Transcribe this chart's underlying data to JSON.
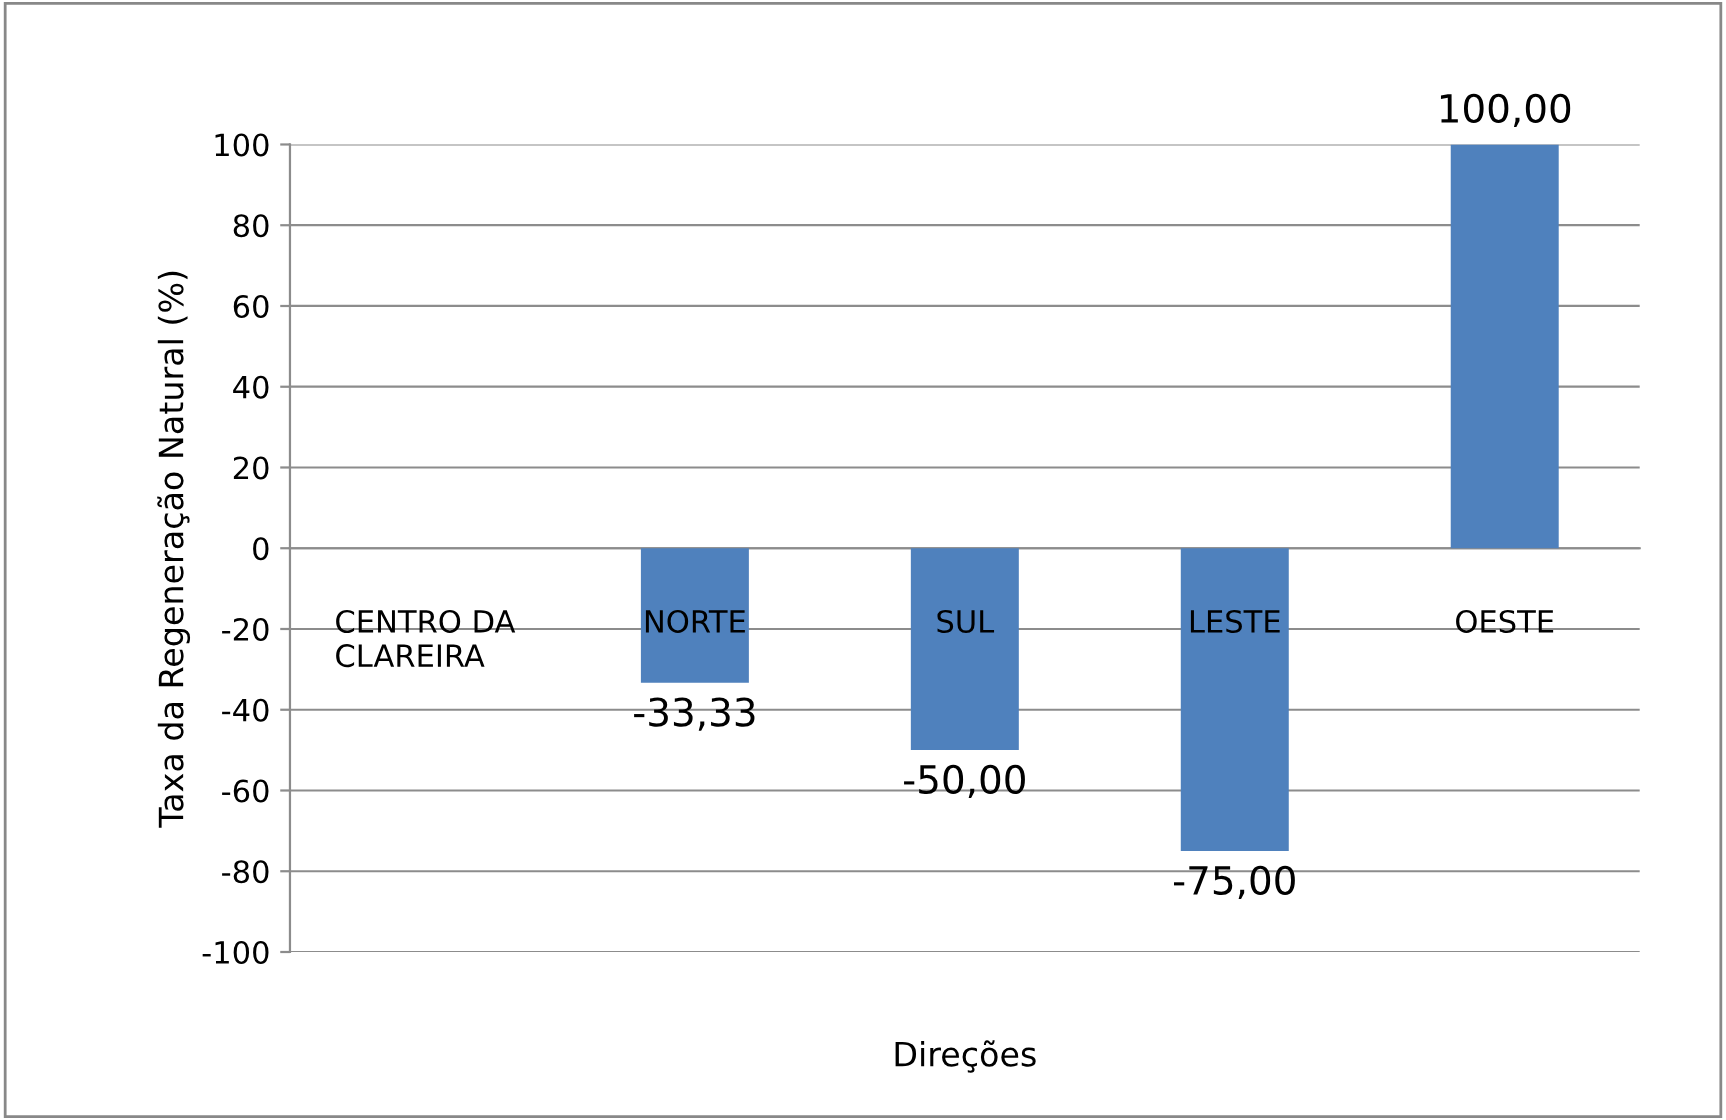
{
  "chart_data": {
    "type": "bar",
    "xlabel": "Direções",
    "ylabel": "Taxa da Regeneração Natural (%)",
    "categories": [
      "CENTRO DA\nCLAREIRA",
      "NORTE",
      "SUL",
      "LESTE",
      "OESTE"
    ],
    "values": [
      0,
      -33.33,
      -50,
      -75,
      100
    ],
    "value_labels": [
      null,
      "-33,33",
      "-50,00",
      "-75,00",
      "100,00"
    ],
    "color": "#4f81bd",
    "ylim": [
      -100,
      100
    ],
    "yticks": [
      -100,
      -80,
      -60,
      -40,
      -20,
      0,
      20,
      40,
      60,
      80,
      100
    ],
    "grid": "y",
    "legend": false
  }
}
